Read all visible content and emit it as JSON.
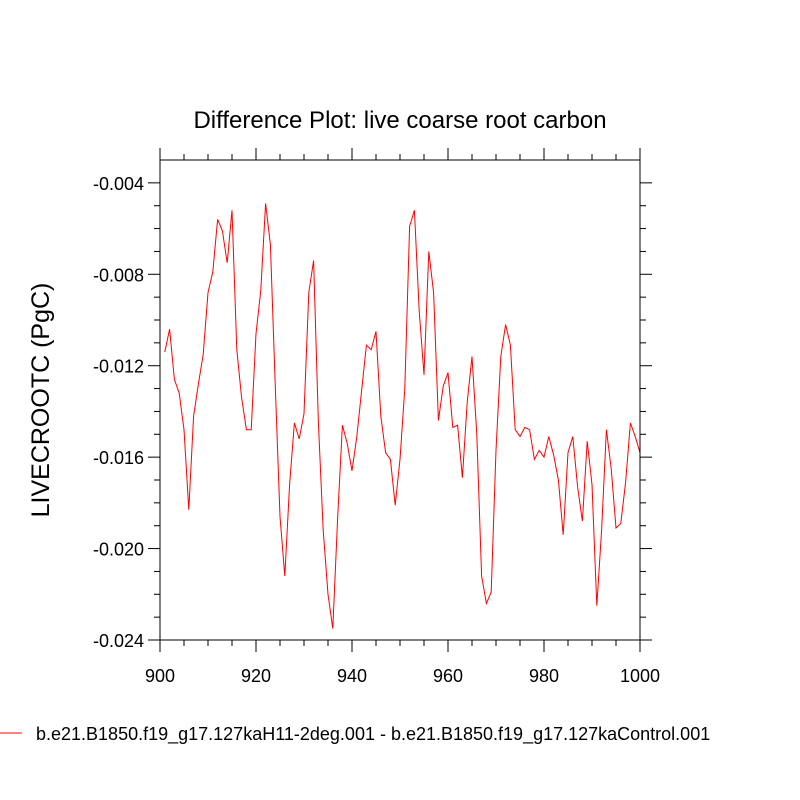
{
  "chart_data": {
    "type": "line",
    "title": "Difference Plot: live coarse root carbon",
    "xlabel": "",
    "ylabel": "LIVECROOTC  (PgC)",
    "xlim": [
      900,
      1000
    ],
    "ylim": [
      -0.024,
      -0.003
    ],
    "x_ticks": [
      900,
      920,
      940,
      960,
      980,
      1000
    ],
    "x_tick_labels": [
      "900",
      "920",
      "940",
      "960",
      "980",
      "1000"
    ],
    "y_ticks": [
      -0.024,
      -0.02,
      -0.016,
      -0.012,
      -0.008,
      -0.004
    ],
    "y_tick_labels": [
      "-0.024",
      "-0.020",
      "-0.016",
      "-0.012",
      "-0.008",
      "-0.004"
    ],
    "grid": false,
    "legend_position": "bottom",
    "series": [
      {
        "name": "b.e21.B1850.f19_g17.127kaH11-2deg.001 - b.e21.B1850.f19_g17.127kaControl.001",
        "color": "#ff0000",
        "x": [
          901,
          902,
          903,
          904,
          905,
          906,
          907,
          908,
          909,
          910,
          911,
          912,
          913,
          914,
          915,
          916,
          917,
          918,
          919,
          920,
          921,
          922,
          923,
          924,
          925,
          926,
          927,
          928,
          929,
          930,
          931,
          932,
          933,
          934,
          935,
          936,
          937,
          938,
          939,
          940,
          941,
          942,
          943,
          944,
          945,
          946,
          947,
          948,
          949,
          950,
          951,
          952,
          953,
          954,
          955,
          956,
          957,
          958,
          959,
          960,
          961,
          962,
          963,
          964,
          965,
          966,
          967,
          968,
          969,
          970,
          971,
          972,
          973,
          974,
          975,
          976,
          977,
          978,
          979,
          980,
          981,
          982,
          983,
          984,
          985,
          986,
          987,
          988,
          989,
          990,
          991,
          992,
          993,
          994,
          995,
          996,
          997,
          998,
          999,
          1000
        ],
        "values": [
          -0.0114,
          -0.0104,
          -0.0126,
          -0.0132,
          -0.0148,
          -0.0183,
          -0.0142,
          -0.0128,
          -0.0115,
          -0.0088,
          -0.0079,
          -0.0056,
          -0.0061,
          -0.0075,
          -0.0052,
          -0.0113,
          -0.0134,
          -0.0148,
          -0.0148,
          -0.0106,
          -0.0087,
          -0.0049,
          -0.0067,
          -0.0128,
          -0.0186,
          -0.0212,
          -0.0172,
          -0.0145,
          -0.0152,
          -0.0141,
          -0.0088,
          -0.0074,
          -0.0145,
          -0.0192,
          -0.022,
          -0.0235,
          -0.0187,
          -0.0146,
          -0.0154,
          -0.0166,
          -0.0151,
          -0.0131,
          -0.0111,
          -0.0113,
          -0.0105,
          -0.0142,
          -0.0158,
          -0.0161,
          -0.0181,
          -0.0161,
          -0.013,
          -0.0059,
          -0.0052,
          -0.0096,
          -0.0124,
          -0.007,
          -0.0088,
          -0.0144,
          -0.0129,
          -0.0123,
          -0.0147,
          -0.0146,
          -0.0169,
          -0.0136,
          -0.0116,
          -0.015,
          -0.0212,
          -0.0224,
          -0.0219,
          -0.0157,
          -0.0116,
          -0.0102,
          -0.0111,
          -0.0148,
          -0.0151,
          -0.0147,
          -0.0148,
          -0.0161,
          -0.0157,
          -0.016,
          -0.0151,
          -0.0159,
          -0.017,
          -0.0194,
          -0.0158,
          -0.0151,
          -0.0173,
          -0.0188,
          -0.0153,
          -0.0172,
          -0.0225,
          -0.0192,
          -0.0148,
          -0.0165,
          -0.0191,
          -0.0189,
          -0.0171,
          -0.0145,
          -0.0151,
          -0.0158
        ]
      }
    ]
  }
}
